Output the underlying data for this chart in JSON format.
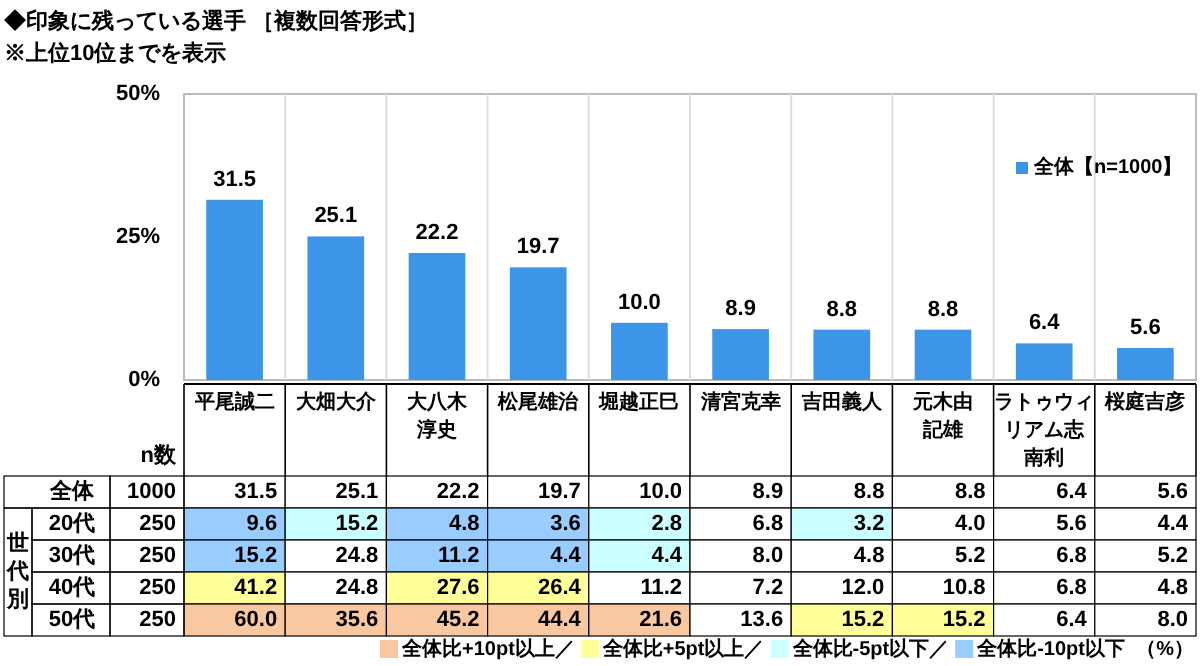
{
  "chart_data": [
    {
      "type": "bar",
      "title": "◆印象に残っている選手 ［複数回答形式］",
      "subtitle": "※上位10位までを表示",
      "categories": [
        null,
        null,
        null,
        null,
        null,
        null,
        null,
        null,
        null,
        null
      ],
      "series": [
        {
          "name": "全体【n=1000】",
          "color": "#3d95e8",
          "values": [
            31.5,
            25.1,
            22.2,
            19.7,
            10.0,
            8.9,
            8.8,
            8.8,
            6.4,
            5.6
          ],
          "value_labels": [
            "31.5",
            "25.1",
            "22.2",
            "19.7",
            "10.0",
            "8.9",
            "8.8",
            "8.8",
            "6.4",
            "5.6"
          ]
        }
      ],
      "ylim": [
        0,
        50
      ],
      "yticks": [
        {
          "value": 0,
          "label": "0%"
        },
        {
          "value": 25,
          "label": "25%"
        },
        {
          "value": 50,
          "label": "50%"
        }
      ],
      "grid": "x",
      "legend": "top right"
    },
    {
      "type": "heatmap",
      "categories": [
        "平尾誠二",
        "大畑大介",
        "大八木淳史",
        "松尾雄治",
        "堀越正巳",
        "清宮克幸",
        "吉田義人",
        "元木由記雄",
        "ラトゥウィリアム志南利",
        "桜庭吉彦"
      ],
      "y_categories": [
        "全体",
        "20代",
        "30代",
        "40代",
        "50代"
      ],
      "y2_categories": [
        "1000",
        "250",
        "250",
        "250",
        "250"
      ],
      "cells": [
        [
          31.5,
          25.1,
          22.2,
          19.7,
          10.0,
          8.9,
          8.8,
          8.8,
          6.4,
          5.6
        ],
        [
          9.6,
          15.2,
          4.8,
          3.6,
          2.8,
          6.8,
          3.2,
          4.0,
          5.6,
          4.4
        ],
        [
          15.2,
          24.8,
          11.2,
          4.4,
          4.4,
          8.0,
          4.8,
          5.2,
          6.8,
          5.2
        ],
        [
          41.2,
          24.8,
          27.6,
          26.4,
          11.2,
          7.2,
          12.0,
          10.8,
          6.8,
          4.8
        ],
        [
          60.0,
          35.6,
          45.2,
          44.4,
          21.6,
          13.6,
          15.2,
          15.2,
          6.4,
          8.0
        ]
      ],
      "cell_labels": [
        [
          "31.5",
          "25.1",
          "22.2",
          "19.7",
          "10.0",
          "8.9",
          "8.8",
          "8.8",
          "6.4",
          "5.6"
        ],
        [
          "9.6",
          "15.2",
          "4.8",
          "3.6",
          "2.8",
          "6.8",
          "3.2",
          "4.0",
          "5.6",
          "4.4"
        ],
        [
          "15.2",
          "24.8",
          "11.2",
          "4.4",
          "4.4",
          "8.0",
          "4.8",
          "5.2",
          "6.8",
          "5.2"
        ],
        [
          "41.2",
          "24.8",
          "27.6",
          "26.4",
          "11.2",
          "7.2",
          "12.0",
          "10.8",
          "6.8",
          "4.8"
        ],
        [
          "60.0",
          "35.6",
          "45.2",
          "44.4",
          "21.6",
          "13.6",
          "15.2",
          "15.2",
          "6.4",
          "8.0"
        ]
      ],
      "annotations": [
        "n数",
        "世代別",
        "全体比+10pt以上／",
        "全体比+5pt以上／",
        "全体比-5pt以下／",
        "全体比-10pt以下",
        "（%）"
      ]
    }
  ]
}
